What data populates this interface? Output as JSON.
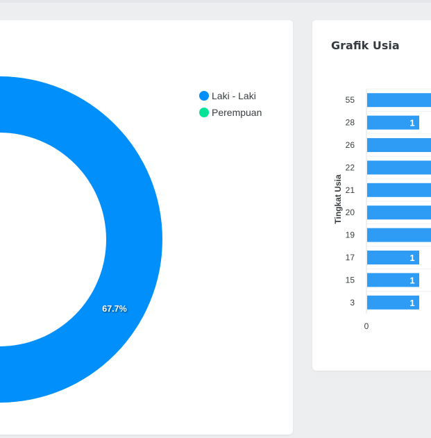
{
  "gender_card": {
    "chart_data": {
      "type": "pie",
      "categories": [
        "Laki - Laki",
        "Perempuan"
      ],
      "slice_labels": [
        "67.7%"
      ],
      "colors": [
        "#008ffb",
        "#00e396"
      ]
    },
    "legend": [
      {
        "label": "Laki - Laki",
        "color": "#008ffb"
      },
      {
        "label": "Perempuan",
        "color": "#00e396"
      }
    ]
  },
  "age_card": {
    "title": "Grafik Usia",
    "chart_data": {
      "type": "bar",
      "orientation": "horizontal",
      "categories": [
        "55",
        "28",
        "26",
        "22",
        "21",
        "20",
        "19",
        "17",
        "15",
        "3"
      ],
      "visible_data_labels": [
        "",
        "1",
        "",
        "",
        "",
        "",
        "",
        "1",
        "1",
        "1"
      ],
      "ylabel": "Tingkat Usia",
      "x_ticks": [
        "0"
      ],
      "bar_color": "#2e9cf4"
    }
  }
}
